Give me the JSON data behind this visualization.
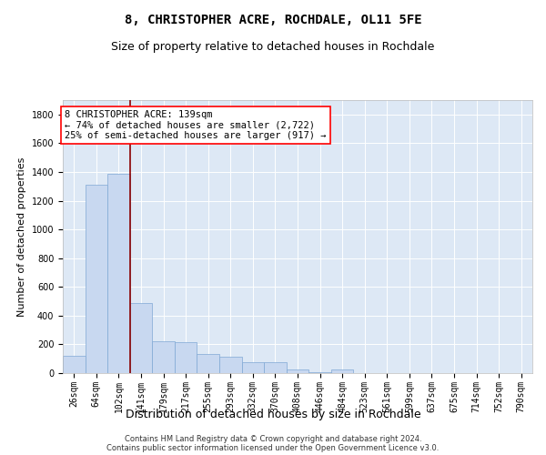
{
  "title": "8, CHRISTOPHER ACRE, ROCHDALE, OL11 5FE",
  "subtitle": "Size of property relative to detached houses in Rochdale",
  "xlabel": "Distribution of detached houses by size in Rochdale",
  "ylabel": "Number of detached properties",
  "footer_line1": "Contains HM Land Registry data © Crown copyright and database right 2024.",
  "footer_line2": "Contains public sector information licensed under the Open Government Licence v3.0.",
  "bin_labels": [
    "26sqm",
    "64sqm",
    "102sqm",
    "141sqm",
    "179sqm",
    "217sqm",
    "255sqm",
    "293sqm",
    "332sqm",
    "370sqm",
    "408sqm",
    "446sqm",
    "484sqm",
    "523sqm",
    "561sqm",
    "599sqm",
    "637sqm",
    "675sqm",
    "714sqm",
    "752sqm",
    "790sqm"
  ],
  "bar_values": [
    120,
    1310,
    1390,
    490,
    220,
    215,
    130,
    115,
    75,
    75,
    25,
    5,
    25,
    0,
    0,
    0,
    0,
    0,
    0,
    0,
    0
  ],
  "bar_color": "#c8d8f0",
  "bar_edge_color": "#7fa8d4",
  "bg_color": "#dde8f5",
  "grid_color": "#ffffff",
  "red_line_x": 2.5,
  "ylim": [
    0,
    1900
  ],
  "yticks": [
    0,
    200,
    400,
    600,
    800,
    1000,
    1200,
    1400,
    1600,
    1800
  ],
  "ann_line1": "8 CHRISTOPHER ACRE: 139sqm",
  "ann_line2": "← 74% of detached houses are smaller (2,722)",
  "ann_line3": "25% of semi-detached houses are larger (917) →",
  "title_fontsize": 10,
  "subtitle_fontsize": 9,
  "xlabel_fontsize": 9,
  "ylabel_fontsize": 8,
  "tick_fontsize": 7,
  "ann_fontsize": 7.5,
  "footer_fontsize": 6
}
